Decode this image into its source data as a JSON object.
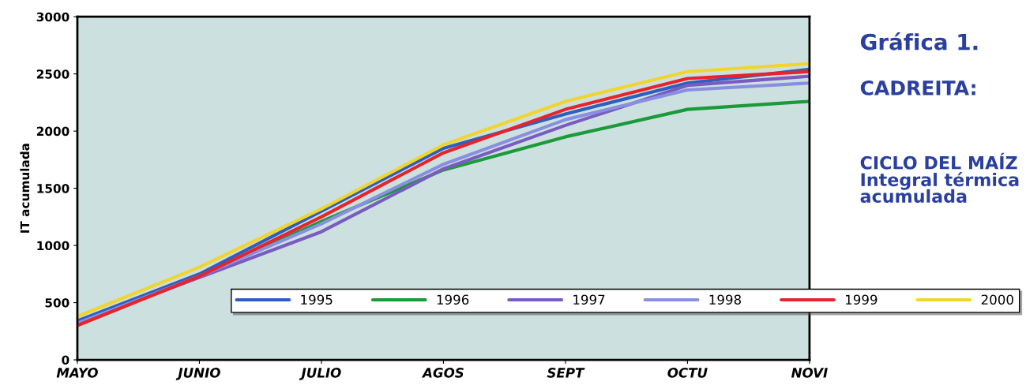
{
  "chart_data": {
    "type": "line",
    "title": "Gráfica 1.",
    "subtitle": "CADREITA:",
    "annotations": [
      "CICLO DEL MAÍZ\nIntegral térmica\nacumulada"
    ],
    "ylabel": "IT acumulada",
    "categories": [
      "MAYO",
      "JUNIO",
      "JULIO",
      "AGOS",
      "SEPT",
      "OCTU",
      "NOVI"
    ],
    "series": [
      {
        "name": "1995",
        "color": "#2e5fbf",
        "values": [
          340,
          750,
          1300,
          1850,
          2150,
          2420,
          2540
        ]
      },
      {
        "name": "1996",
        "color": "#1a9a3a",
        "values": [
          310,
          730,
          1210,
          1660,
          1950,
          2190,
          2260
        ]
      },
      {
        "name": "1997",
        "color": "#7a5cc0",
        "values": [
          320,
          720,
          1120,
          1670,
          2050,
          2400,
          2480
        ]
      },
      {
        "name": "1998",
        "color": "#8a8ee0",
        "values": [
          320,
          730,
          1190,
          1710,
          2100,
          2360,
          2420
        ]
      },
      {
        "name": "1999",
        "color": "#e8232b",
        "values": [
          300,
          730,
          1250,
          1810,
          2190,
          2460,
          2520
        ]
      },
      {
        "name": "2000",
        "color": "#f0d530",
        "values": [
          380,
          810,
          1320,
          1880,
          2260,
          2520,
          2590
        ]
      }
    ],
    "ylim": [
      0,
      3000
    ],
    "yticks": [
      0,
      500,
      1000,
      1500,
      2000,
      2500,
      3000
    ],
    "grid": false,
    "legend": "bottom right",
    "marker": "none",
    "line_style": "solid"
  }
}
